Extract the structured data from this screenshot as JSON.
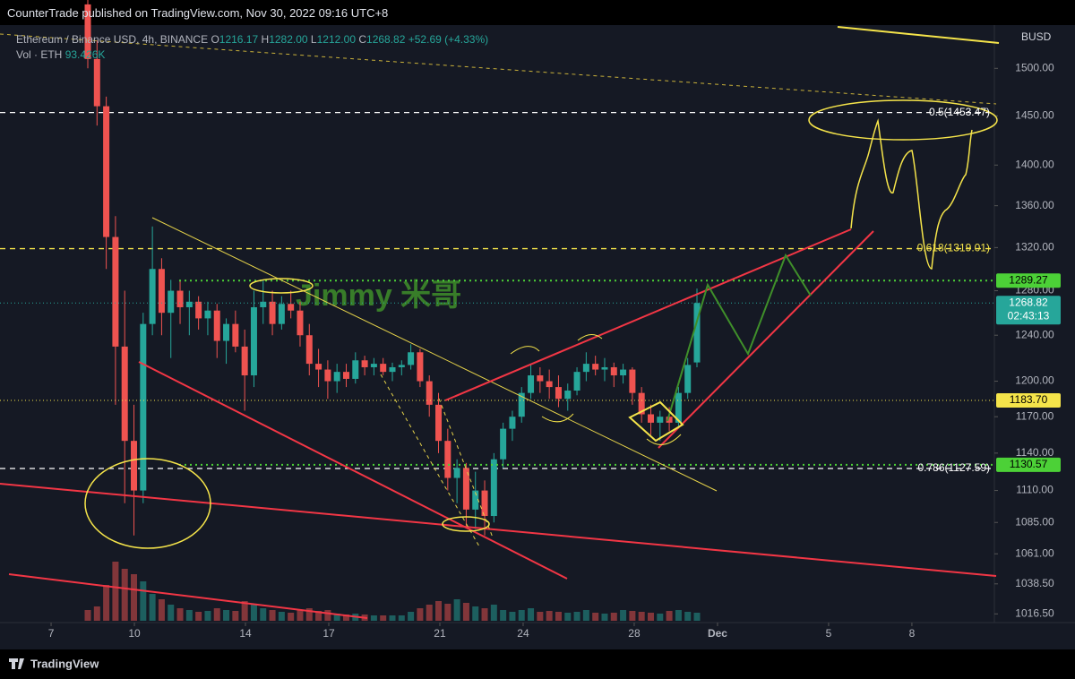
{
  "header": {
    "publisher": "CounterTrade published on TradingView.com, Nov 30, 2022 09:16 UTC+8"
  },
  "chart_data": {
    "type": "candlestick",
    "title": "Ethereum / Binance USD, 4h, BINANCE",
    "ohlc": [
      {
        "key": "O",
        "value": "1216.17"
      },
      {
        "key": "H",
        "value": "1282.00"
      },
      {
        "key": "L",
        "value": "1212.00"
      },
      {
        "key": "C",
        "value": "1268.82"
      }
    ],
    "change": "+52.69 (+4.33%)",
    "volume_label": "Vol · ETH",
    "volume_value": "93.426K",
    "currency": "BUSD",
    "watermark": "Jimmy 米哥",
    "log_scale": true,
    "ylim": [
      1007,
      1547
    ],
    "yticks": [
      {
        "value": 1016.5,
        "label": "1016.50"
      },
      {
        "value": 1038.5,
        "label": "1038.50"
      },
      {
        "value": 1061,
        "label": "1061.00"
      },
      {
        "value": 1085,
        "label": "1085.00"
      },
      {
        "value": 1110,
        "label": "1110.00"
      },
      {
        "value": 1140,
        "label": "1140.00"
      },
      {
        "value": 1170,
        "label": "1170.00"
      },
      {
        "value": 1200,
        "label": "1200.00"
      },
      {
        "value": 1240,
        "label": "1240.00"
      },
      {
        "value": 1280,
        "label": "1280.00"
      },
      {
        "value": 1320,
        "label": "1320.00"
      },
      {
        "value": 1360,
        "label": "1360.00"
      },
      {
        "value": 1400,
        "label": "1400.00"
      },
      {
        "value": 1450,
        "label": "1450.00"
      },
      {
        "value": 1500,
        "label": "1500.00"
      }
    ],
    "xlim": [
      5.16,
      40.97
    ],
    "xticks": [
      7,
      10,
      14,
      17,
      21,
      24,
      28,
      {
        "value": 31,
        "label": "Dec"
      },
      {
        "value": 35,
        "label": "5"
      },
      {
        "value": 38,
        "label": "8"
      }
    ],
    "up_color": "#26a69a",
    "down_color": "#ef5350",
    "candles": [
      [
        1570,
        1575,
        1500,
        1510
      ],
      [
        1510,
        1530,
        1440,
        1460
      ],
      [
        1460,
        1470,
        1300,
        1330
      ],
      [
        1330,
        1350,
        1180,
        1230
      ],
      [
        1230,
        1280,
        1100,
        1150
      ],
      [
        1150,
        1180,
        1075,
        1110
      ],
      [
        1110,
        1260,
        1100,
        1250
      ],
      [
        1250,
        1340,
        1240,
        1300
      ],
      [
        1300,
        1310,
        1240,
        1260
      ],
      [
        1260,
        1290,
        1220,
        1280
      ],
      [
        1280,
        1290,
        1250,
        1265
      ],
      [
        1265,
        1280,
        1240,
        1270
      ],
      [
        1270,
        1275,
        1245,
        1255
      ],
      [
        1255,
        1270,
        1240,
        1262
      ],
      [
        1262,
        1268,
        1220,
        1235
      ],
      [
        1235,
        1255,
        1215,
        1250
      ],
      [
        1250,
        1262,
        1225,
        1230
      ],
      [
        1230,
        1245,
        1175,
        1205
      ],
      [
        1205,
        1280,
        1195,
        1265
      ],
      [
        1265,
        1290,
        1250,
        1270
      ],
      [
        1270,
        1280,
        1240,
        1250
      ],
      [
        1250,
        1275,
        1245,
        1268
      ],
      [
        1268,
        1280,
        1255,
        1262
      ],
      [
        1262,
        1270,
        1230,
        1240
      ],
      [
        1240,
        1250,
        1205,
        1215
      ],
      [
        1215,
        1228,
        1195,
        1210
      ],
      [
        1210,
        1218,
        1185,
        1200
      ],
      [
        1200,
        1215,
        1190,
        1208
      ],
      [
        1208,
        1215,
        1195,
        1202
      ],
      [
        1202,
        1225,
        1198,
        1218
      ],
      [
        1218,
        1222,
        1205,
        1212
      ],
      [
        1212,
        1220,
        1205,
        1215
      ],
      [
        1215,
        1220,
        1205,
        1208
      ],
      [
        1208,
        1216,
        1200,
        1212
      ],
      [
        1212,
        1218,
        1205,
        1214
      ],
      [
        1214,
        1232,
        1210,
        1225
      ],
      [
        1225,
        1228,
        1195,
        1200
      ],
      [
        1200,
        1205,
        1170,
        1180
      ],
      [
        1180,
        1190,
        1140,
        1150
      ],
      [
        1150,
        1160,
        1110,
        1120
      ],
      [
        1120,
        1135,
        1100,
        1128
      ],
      [
        1128,
        1132,
        1082,
        1095
      ],
      [
        1095,
        1125,
        1080,
        1110
      ],
      [
        1110,
        1118,
        1075,
        1090
      ],
      [
        1090,
        1140,
        1085,
        1135
      ],
      [
        1135,
        1165,
        1128,
        1160
      ],
      [
        1160,
        1175,
        1150,
        1170
      ],
      [
        1170,
        1195,
        1165,
        1190
      ],
      [
        1190,
        1215,
        1185,
        1205
      ],
      [
        1205,
        1212,
        1190,
        1200
      ],
      [
        1200,
        1210,
        1185,
        1195
      ],
      [
        1195,
        1205,
        1178,
        1185
      ],
      [
        1185,
        1198,
        1175,
        1192
      ],
      [
        1192,
        1212,
        1188,
        1208
      ],
      [
        1208,
        1225,
        1200,
        1215
      ],
      [
        1215,
        1222,
        1205,
        1210
      ],
      [
        1210,
        1220,
        1200,
        1212
      ],
      [
        1212,
        1216,
        1195,
        1205
      ],
      [
        1205,
        1215,
        1198,
        1210
      ],
      [
        1210,
        1212,
        1180,
        1190
      ],
      [
        1190,
        1195,
        1165,
        1172
      ],
      [
        1172,
        1180,
        1155,
        1165
      ],
      [
        1165,
        1175,
        1150,
        1170
      ],
      [
        1170,
        1178,
        1158,
        1165
      ],
      [
        1165,
        1195,
        1160,
        1190
      ],
      [
        1190,
        1220,
        1185,
        1214
      ],
      [
        1216.17,
        1282,
        1212,
        1268.82
      ]
    ],
    "volumes": [
      60,
      80,
      200,
      330,
      290,
      260,
      220,
      150,
      120,
      90,
      70,
      60,
      50,
      55,
      70,
      60,
      55,
      110,
      90,
      70,
      60,
      50,
      45,
      60,
      70,
      55,
      60,
      40,
      35,
      40,
      35,
      30,
      30,
      30,
      30,
      50,
      70,
      90,
      110,
      95,
      120,
      100,
      80,
      70,
      90,
      60,
      50,
      60,
      70,
      50,
      55,
      50,
      45,
      50,
      60,
      45,
      40,
      45,
      60,
      55,
      50,
      45,
      40,
      55,
      60,
      50,
      45
    ],
    "vlim": [
      0,
      400
    ],
    "levels": [
      {
        "value": 1289.27,
        "color": "#4cd137",
        "style": "dotted"
      },
      {
        "value": 1268.82,
        "color": "#26a69a",
        "style": "thin"
      },
      {
        "value": 1183.7,
        "label": "1183.70",
        "color": "#f5e44a",
        "style": "thin"
      },
      {
        "value": 1130.57,
        "color": "#4cd137",
        "style": "dotted"
      }
    ],
    "countdown": "02:43:13",
    "fib": [
      {
        "value": 1453.47,
        "label": "0.5(1453.47)",
        "color": "#ffffff"
      },
      {
        "value": 1319.01,
        "label": "0.618(1319.01)",
        "color": "#f5e44a"
      },
      {
        "value": 1127.59,
        "label": "0.786(1127.59)",
        "color": "#ffffff"
      }
    ]
  },
  "footer": {
    "brand": "TradingView"
  }
}
